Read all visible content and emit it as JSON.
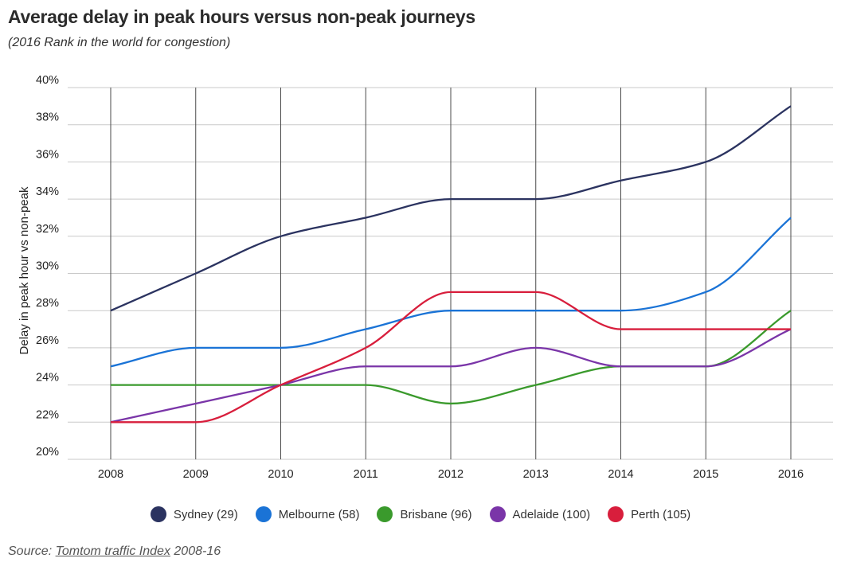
{
  "chart_data": {
    "type": "line",
    "title": "Average delay in peak hours versus non-peak journeys",
    "subtitle": "(2016 Rank in the world for congestion)",
    "xlabel": "",
    "ylabel": "Delay in peak hour vs non-peak",
    "x": [
      "2008",
      "2009",
      "2010",
      "2011",
      "2012",
      "2013",
      "2014",
      "2015",
      "2016"
    ],
    "ylim": [
      20,
      40
    ],
    "yticks": [
      20,
      22,
      24,
      26,
      28,
      30,
      32,
      34,
      36,
      38,
      40
    ],
    "ytick_suffix": "%",
    "grid": true,
    "legend_position": "bottom-center",
    "series": [
      {
        "name": "Sydney (29)",
        "color": "#2b3360",
        "values": [
          28,
          30,
          32,
          33,
          34,
          34,
          35,
          36,
          39
        ]
      },
      {
        "name": "Melbourne (58)",
        "color": "#1a73d6",
        "values": [
          25,
          26,
          26,
          27,
          28,
          28,
          28,
          29,
          33
        ]
      },
      {
        "name": "Brisbane (96)",
        "color": "#3a9a2c",
        "values": [
          24,
          24,
          24,
          24,
          23,
          24,
          25,
          25,
          28
        ]
      },
      {
        "name": "Adelaide (100)",
        "color": "#7a35a8",
        "values": [
          22,
          23,
          24,
          25,
          25,
          26,
          25,
          25,
          27
        ]
      },
      {
        "name": "Perth (105)",
        "color": "#d81e3c",
        "values": [
          22,
          22,
          24,
          26,
          29,
          29,
          27,
          27,
          27
        ]
      }
    ]
  },
  "source": {
    "prefix": "Source: ",
    "link_text": "Tomtom traffic Index",
    "suffix": " 2008-16"
  }
}
